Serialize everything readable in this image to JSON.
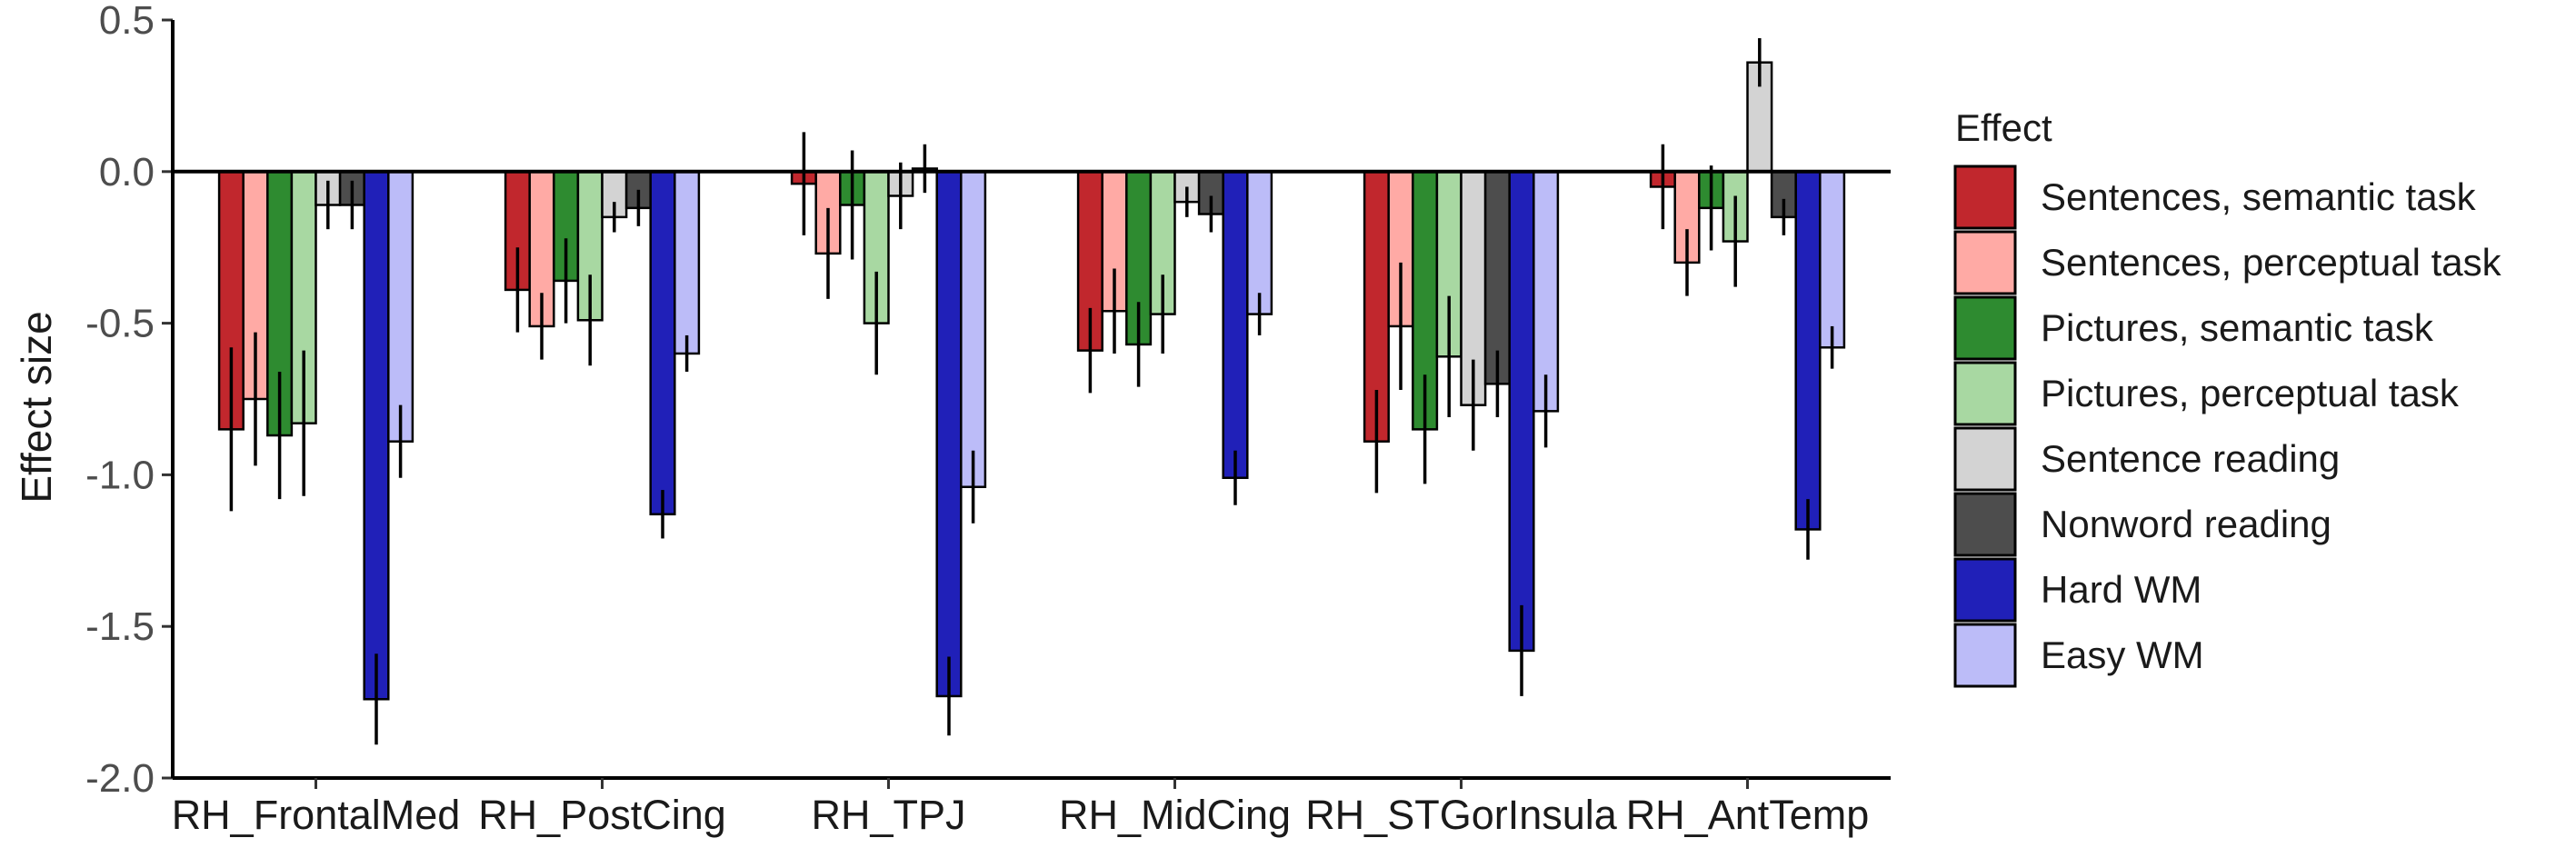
{
  "chart_data": {
    "type": "bar",
    "ylabel": "Effect size",
    "ylim": [
      -2.0,
      0.5
    ],
    "yticks": [
      "0.5",
      "0.0",
      "-0.5",
      "-1.0",
      "-1.5",
      "-2.0"
    ],
    "ytick_values": [
      0.5,
      0.0,
      -0.5,
      -1.0,
      -1.5,
      -2.0
    ],
    "grid": false,
    "legend_title": "Effect",
    "legend_position": "right",
    "categories": [
      "RH_FrontalMed",
      "RH_PostCing",
      "RH_TPJ",
      "RH_MidCing",
      "RH_STGorInsula",
      "RH_AntTemp"
    ],
    "series": [
      {
        "name": "Sentences, semantic task",
        "color": "#c1272d",
        "values": [
          -0.85,
          -0.39,
          -0.04,
          -0.59,
          -0.89,
          -0.05
        ],
        "errors": [
          0.27,
          0.14,
          0.17,
          0.14,
          0.17,
          0.14
        ]
      },
      {
        "name": "Sentences, perceptual task",
        "color": "#ffaaa5",
        "values": [
          -0.75,
          -0.51,
          -0.27,
          -0.46,
          -0.51,
          -0.3
        ],
        "errors": [
          0.22,
          0.11,
          0.15,
          0.14,
          0.21,
          0.11
        ]
      },
      {
        "name": "Pictures, semantic task",
        "color": "#2e8b30",
        "values": [
          -0.87,
          -0.36,
          -0.11,
          -0.57,
          -0.85,
          -0.12
        ],
        "errors": [
          0.21,
          0.14,
          0.18,
          0.14,
          0.18,
          0.14
        ]
      },
      {
        "name": "Pictures, perceptual task",
        "color": "#a8d8a2",
        "values": [
          -0.83,
          -0.49,
          -0.5,
          -0.47,
          -0.61,
          -0.23
        ],
        "errors": [
          0.24,
          0.15,
          0.17,
          0.13,
          0.2,
          0.15
        ]
      },
      {
        "name": "Sentence reading",
        "color": "#d3d3d3",
        "values": [
          -0.11,
          -0.15,
          -0.08,
          -0.1,
          -0.77,
          0.36
        ],
        "errors": [
          0.08,
          0.05,
          0.11,
          0.05,
          0.15,
          0.08
        ]
      },
      {
        "name": "Nonword reading",
        "color": "#4d4d4d",
        "values": [
          -0.11,
          -0.12,
          0.01,
          -0.14,
          -0.7,
          -0.15
        ],
        "errors": [
          0.08,
          0.06,
          0.08,
          0.06,
          0.11,
          0.06
        ]
      },
      {
        "name": "Hard WM",
        "color": "#2020b8",
        "values": [
          -1.74,
          -1.13,
          -1.73,
          -1.01,
          -1.58,
          -1.18
        ],
        "errors": [
          0.15,
          0.08,
          0.13,
          0.09,
          0.15,
          0.1
        ]
      },
      {
        "name": "Easy WM",
        "color": "#bcbcf8",
        "values": [
          -0.89,
          -0.6,
          -1.04,
          -0.47,
          -0.79,
          -0.58
        ],
        "errors": [
          0.12,
          0.06,
          0.12,
          0.07,
          0.12,
          0.07
        ]
      }
    ]
  }
}
